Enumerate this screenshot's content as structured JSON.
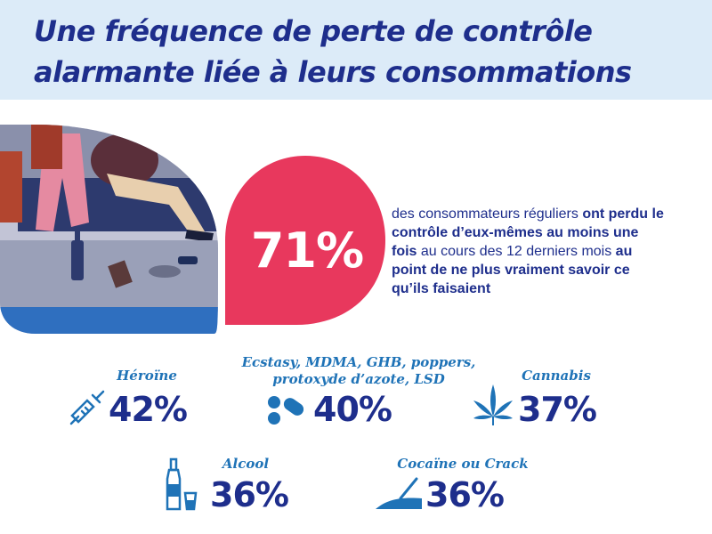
{
  "title": {
    "line1": "Une fréquence de perte de contrôle",
    "line2": "alarmante liée à leurs consommations"
  },
  "headline": {
    "percent": "71%",
    "desc_1": "des consommateurs réguliers ",
    "desc_2": "ont perdu le contrôle d’eux-mêmes au moins une fois",
    "desc_3": " au cours des 12 derniers mois ",
    "desc_4": "au point de ne plus vraiment savoir ce qu’ils faisaient"
  },
  "stats": [
    {
      "label": "Héroïne",
      "percent": "42%",
      "icon": "syringe-icon"
    },
    {
      "label_line1": "Ecstasy, MDMA, GHB, poppers,",
      "label_line2": "protoxyde d’azote, LSD",
      "percent": "40%",
      "icon": "pills-icon"
    },
    {
      "label": "Cannabis",
      "percent": "37%",
      "icon": "cannabis-leaf-icon"
    },
    {
      "label": "Alcool",
      "percent": "36%",
      "icon": "bottle-glass-icon"
    },
    {
      "label": "Cocaïne ou Crack",
      "percent": "36%",
      "icon": "cocaine-line-icon"
    }
  ],
  "colors": {
    "title_band": "#dcebf8",
    "navy": "#1e2e8c",
    "label_blue": "#1f73b7",
    "drop_pink": "#e8385d"
  }
}
